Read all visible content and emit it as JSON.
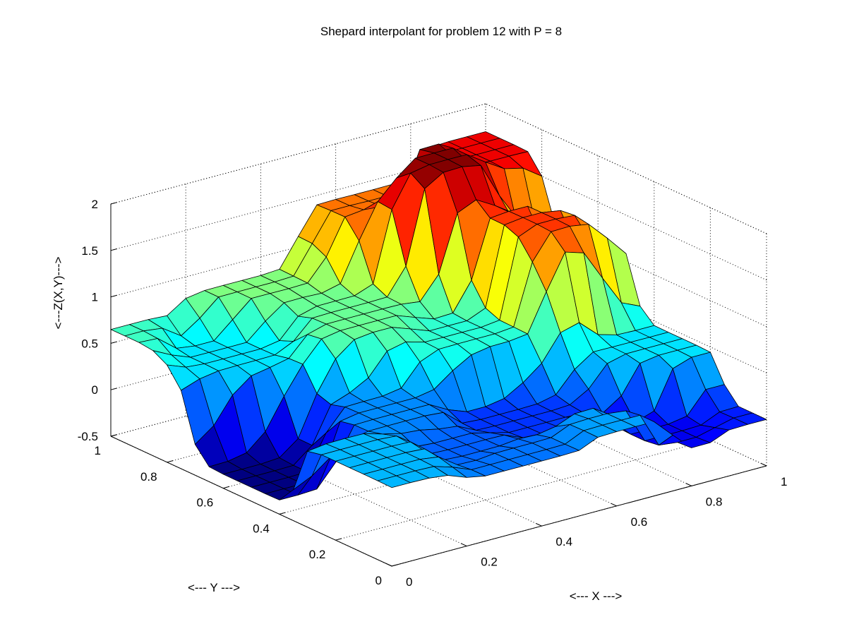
{
  "chart_data": {
    "type": "surface",
    "title": "Shepard interpolant for problem 12 with P = 8",
    "xlabel": "<--- X --->",
    "ylabel": "<--- Y --->",
    "zlabel": "<---Z(X,Y)--->",
    "xlim": [
      0,
      1
    ],
    "ylim": [
      0,
      1
    ],
    "zlim": [
      -0.5,
      2
    ],
    "xticks": [
      "0",
      "0.2",
      "0.4",
      "0.6",
      "0.8",
      "1"
    ],
    "yticks": [
      "0",
      "0.2",
      "0.4",
      "0.6",
      "0.8",
      "1"
    ],
    "zticks": [
      "-0.5",
      "0",
      "0.5",
      "1",
      "1.5",
      "2"
    ],
    "grid": true,
    "colormap": "jet",
    "mesh_color": "#000000",
    "grid_resolution": 21,
    "data_points": [
      {
        "x": 0.05,
        "y": 0.5,
        "z": -0.35
      },
      {
        "x": 0.1,
        "y": 0.2,
        "z": 0.35
      },
      {
        "x": 0.2,
        "y": 0.85,
        "z": 0.45
      },
      {
        "x": 0.3,
        "y": 0.4,
        "z": 0.25
      },
      {
        "x": 0.45,
        "y": 0.7,
        "z": 0.75
      },
      {
        "x": 0.4,
        "y": 0.05,
        "z": 0.2
      },
      {
        "x": 0.55,
        "y": 0.3,
        "z": 0.05
      },
      {
        "x": 0.75,
        "y": 0.85,
        "z": 1.95
      },
      {
        "x": 0.85,
        "y": 0.6,
        "z": 1.55
      },
      {
        "x": 0.7,
        "y": 0.95,
        "z": 1.4
      },
      {
        "x": 0.9,
        "y": 0.9,
        "z": 1.7
      },
      {
        "x": 0.95,
        "y": 0.3,
        "z": 0.45
      },
      {
        "x": 0.8,
        "y": 0.1,
        "z": -0.1
      },
      {
        "x": 1.0,
        "y": 0.0,
        "z": 0.0
      },
      {
        "x": 0.6,
        "y": 0.55,
        "z": 0.6
      },
      {
        "x": 0.0,
        "y": 1.0,
        "z": 0.65
      },
      {
        "x": 0.3,
        "y": 0.95,
        "z": 0.8
      },
      {
        "x": 0.65,
        "y": 0.05,
        "z": 0.3
      },
      {
        "x": 0.95,
        "y": 0.65,
        "z": 1.0
      },
      {
        "x": 0.35,
        "y": 0.2,
        "z": 0.15
      }
    ]
  }
}
